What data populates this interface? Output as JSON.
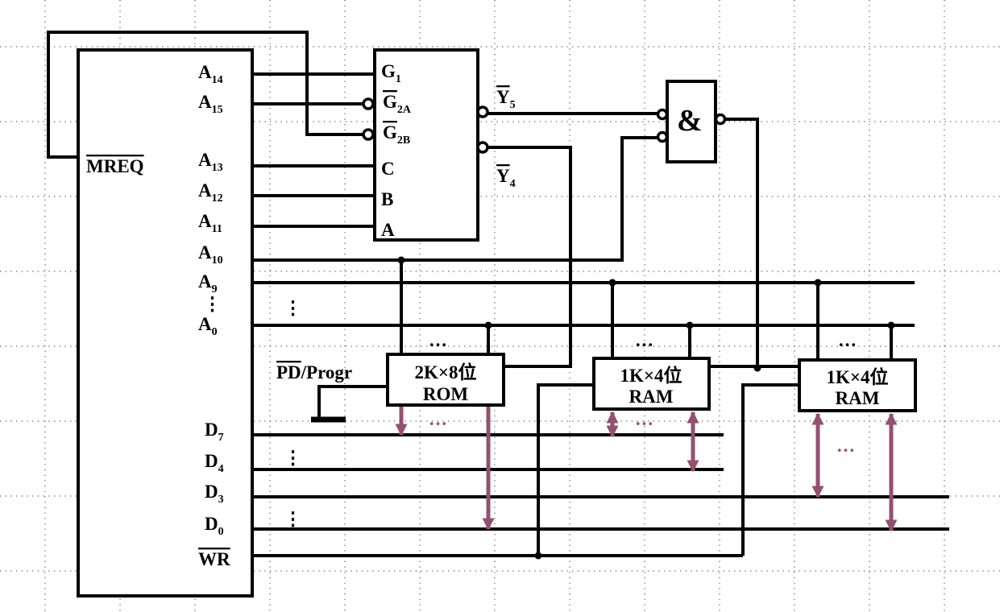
{
  "colors": {
    "wire": "#000000",
    "data_bus": "#935071",
    "grid": "#555555"
  },
  "cpu": {
    "pins": {
      "a14": {
        "main": "A",
        "sub": "14"
      },
      "a15": {
        "main": "A",
        "sub": "15"
      },
      "mreq": {
        "main": "MREQ",
        "active_low": true
      },
      "a13": {
        "main": "A",
        "sub": "13"
      },
      "a12": {
        "main": "A",
        "sub": "12"
      },
      "a11": {
        "main": "A",
        "sub": "11"
      },
      "a10": {
        "main": "A",
        "sub": "10"
      },
      "a9": {
        "main": "A",
        "sub": "9"
      },
      "a0": {
        "main": "A",
        "sub": "0"
      },
      "d7": {
        "main": "D",
        "sub": "7"
      },
      "d4": {
        "main": "D",
        "sub": "4"
      },
      "d3": {
        "main": "D",
        "sub": "3"
      },
      "d0": {
        "main": "D",
        "sub": "0"
      },
      "wr": {
        "main": "WR",
        "active_low": true
      }
    }
  },
  "decoder": {
    "inputs": {
      "g1": {
        "main": "G",
        "sub": "1"
      },
      "g2a": {
        "main": "G",
        "sub": "2A",
        "active_low": true
      },
      "g2b": {
        "main": "G",
        "sub": "2B",
        "active_low": true
      },
      "c": "C",
      "b": "B",
      "a": "A"
    },
    "outputs": {
      "y5": {
        "main": "Y",
        "sub": "5",
        "active_low": true
      },
      "y4": {
        "main": "Y",
        "sub": "4",
        "active_low": true
      }
    }
  },
  "nand_gate": {
    "symbol": "&"
  },
  "pd_progr": {
    "overlined": "PD",
    "rest": "/Progr"
  },
  "chips": [
    {
      "line1": "2K×8位",
      "line2": "ROM"
    },
    {
      "line1": "1K×4位",
      "line2": "RAM"
    },
    {
      "line1": "1K×4位",
      "line2": "RAM"
    }
  ],
  "ellipsis": "…",
  "vertical_ellipsis": "⋮"
}
